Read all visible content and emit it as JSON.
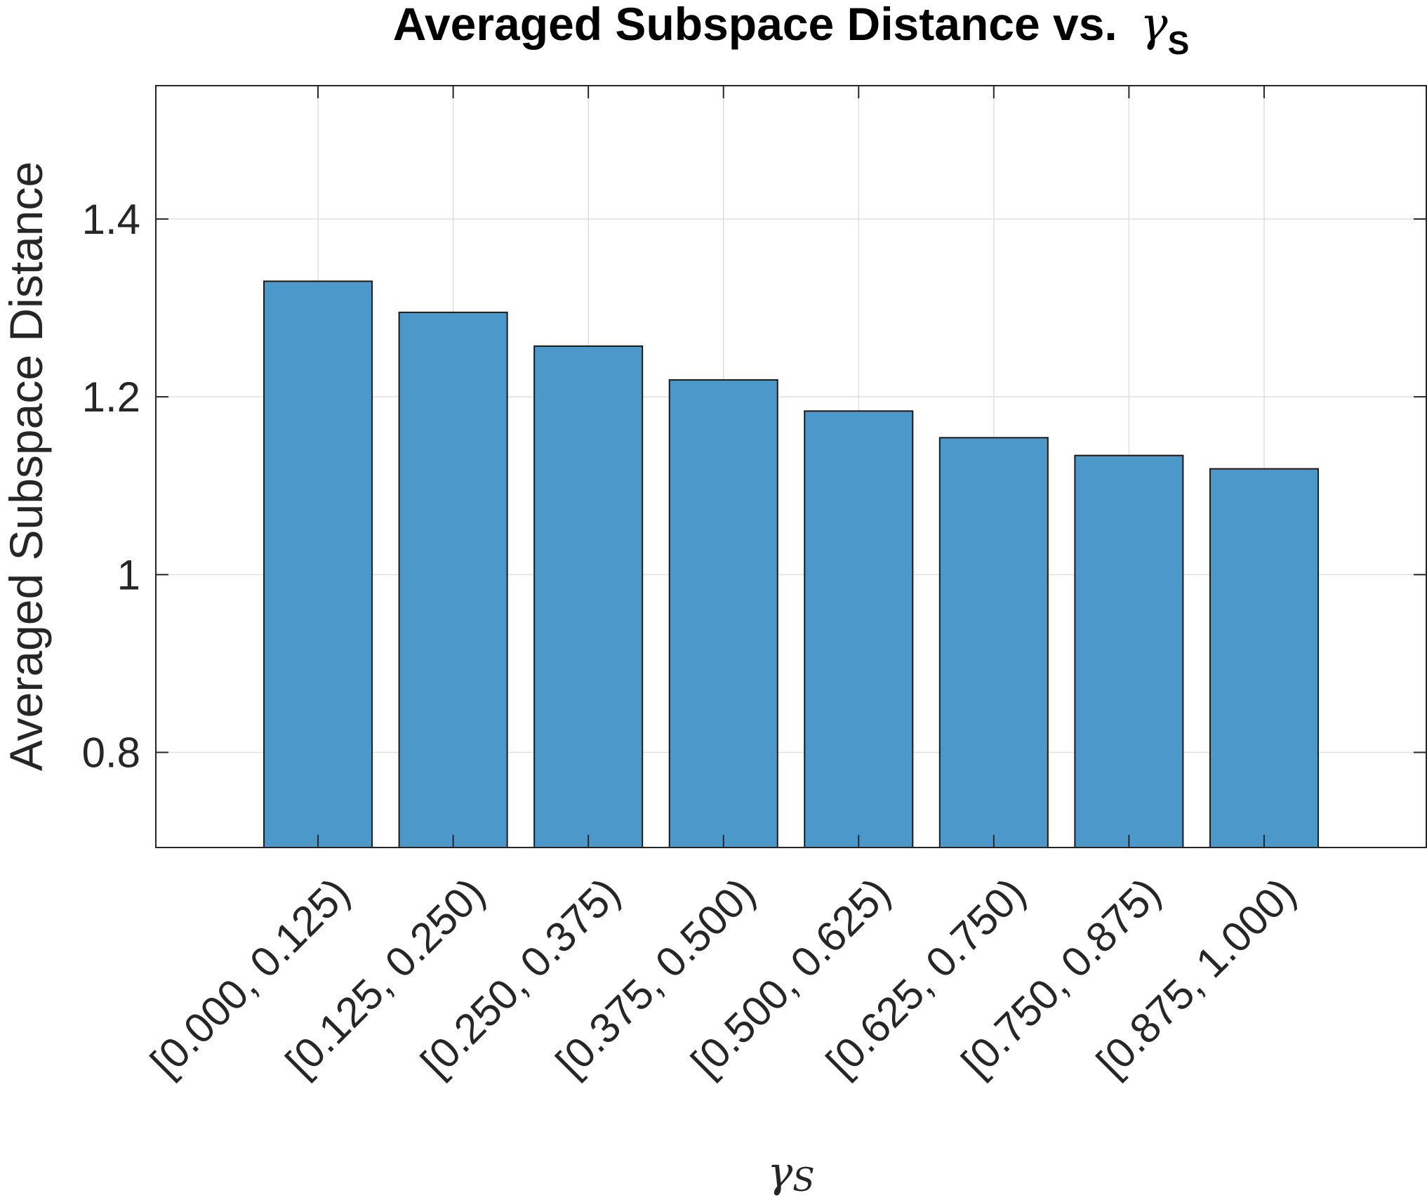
{
  "chart_data": {
    "type": "bar",
    "title": "Averaged Subspace Distance vs.",
    "title_symbol": "γ",
    "title_subscript": "S",
    "xlabel_symbol": "γ",
    "xlabel_subscript": "S",
    "ylabel": "Averaged Subspace Distance",
    "categories": [
      "[0.000, 0.125)",
      "[0.125, 0.250)",
      "[0.250, 0.375)",
      "[0.375, 0.500)",
      "[0.500, 0.625)",
      "[0.625, 0.750)",
      "[0.750, 0.875)",
      "[0.875, 1.000)"
    ],
    "values": [
      1.33,
      1.295,
      1.257,
      1.219,
      1.184,
      1.154,
      1.134,
      1.119
    ],
    "ylim": [
      0.693,
      1.55
    ],
    "yticks": [
      0.8,
      1,
      1.2,
      1.4
    ],
    "ytick_labels": [
      "0.8",
      "1",
      "1.2",
      "1.4"
    ],
    "grid": true,
    "legend": "none",
    "bar_color": "#4d98ca",
    "edge_color": "#1a1a1a"
  }
}
